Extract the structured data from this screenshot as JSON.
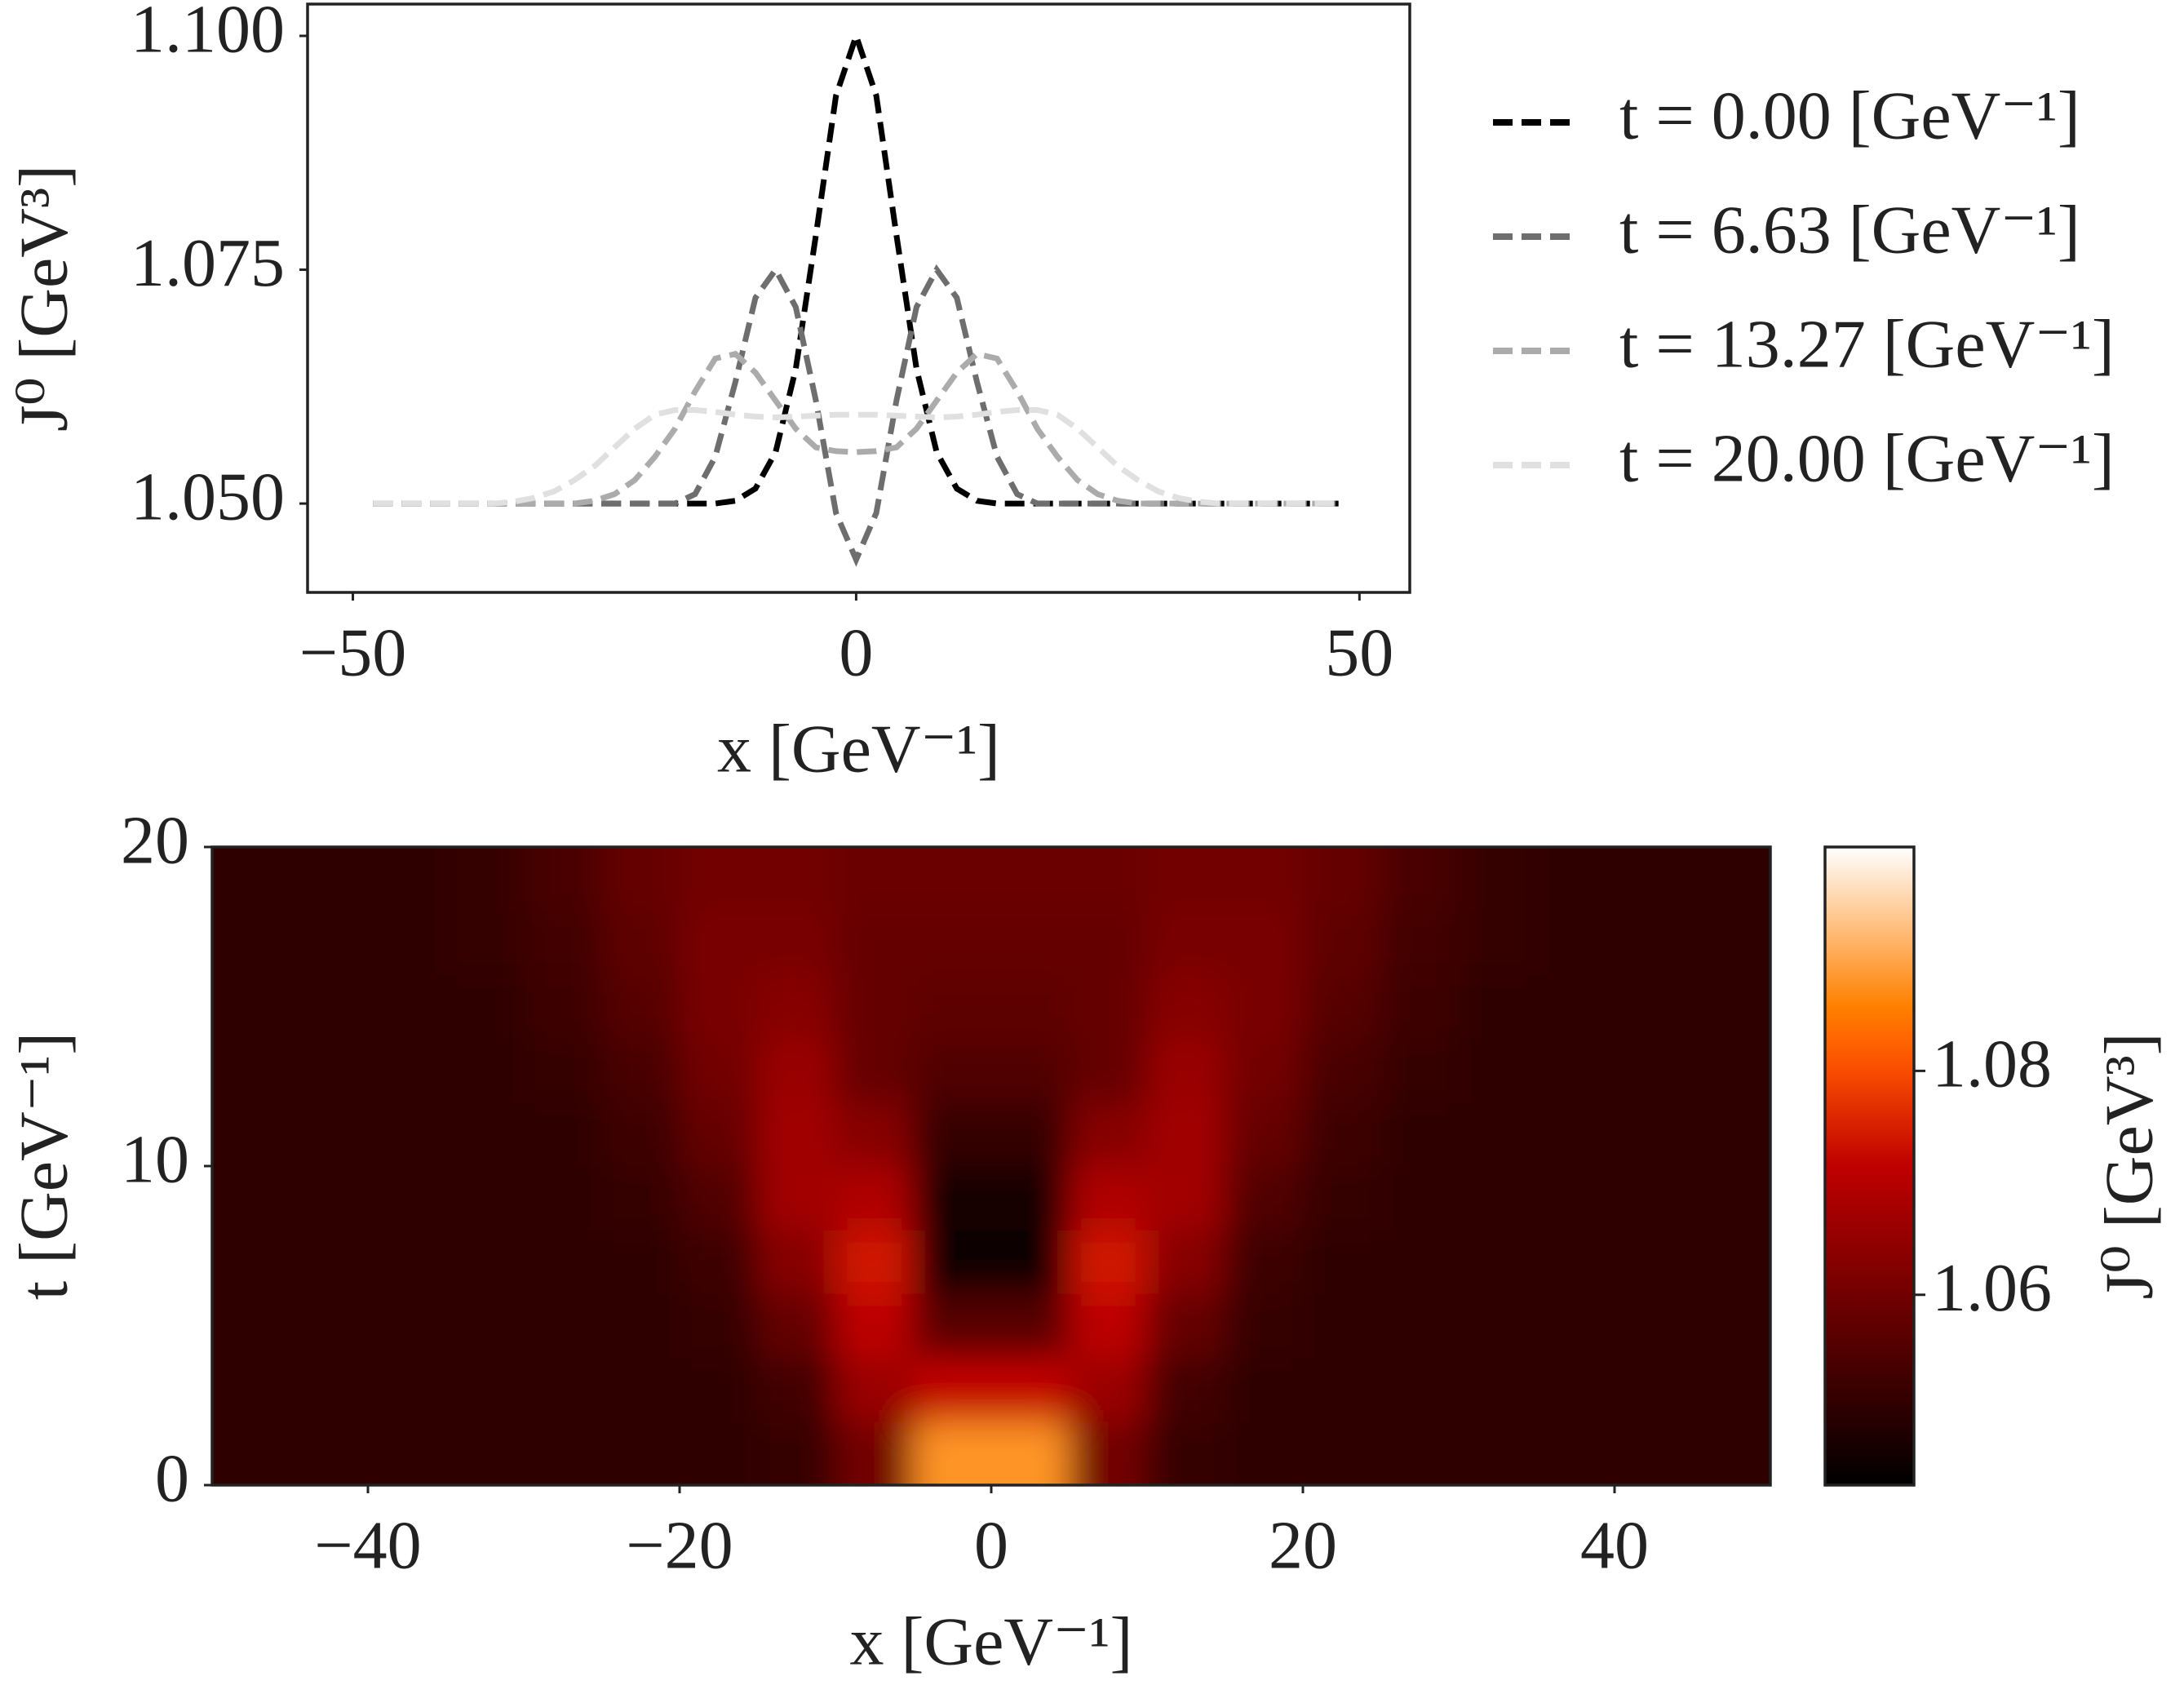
{
  "chart_data": [
    {
      "type": "line",
      "xlabel": "x [GeV⁻¹]",
      "ylabel": "J⁰ [GeV³]",
      "xlim": [
        -54.5,
        55
      ],
      "ylim": [
        1.0405,
        1.1034
      ],
      "xticks": [
        {
          "value": -50,
          "label": "−50"
        },
        0,
        50
      ],
      "yticks": [
        {
          "value": 1.05,
          "label": "1.050"
        },
        1.075,
        {
          "value": 1.1,
          "label": "1.100"
        }
      ],
      "grid": false,
      "legend": "outside-right",
      "line_style": "dashed",
      "x": [
        -48,
        -46,
        -44,
        -42,
        -40,
        -38,
        -36,
        -34,
        -32,
        -30,
        -28,
        -26,
        -24,
        -22,
        -20,
        -18,
        -16,
        -14,
        -12,
        -10,
        -8,
        -6,
        -4,
        -2,
        0,
        2,
        4,
        6,
        8,
        10,
        12,
        14,
        16,
        18,
        20,
        22,
        24,
        26,
        28,
        30,
        32,
        34,
        36,
        38,
        40,
        42,
        44,
        46,
        48
      ],
      "series": [
        {
          "name": "t = 0.00 [GeV⁻¹]",
          "color": "#000000",
          "values": [
            1.05,
            1.05,
            1.05,
            1.05,
            1.05,
            1.05,
            1.05,
            1.05,
            1.05,
            1.05,
            1.05,
            1.05,
            1.05,
            1.05,
            1.05,
            1.05,
            1.05,
            1.05,
            1.0503,
            1.0516,
            1.0555,
            1.0644,
            1.0787,
            1.0936,
            1.1,
            1.0936,
            1.0787,
            1.0644,
            1.0555,
            1.0516,
            1.0503,
            1.05,
            1.05,
            1.05,
            1.05,
            1.05,
            1.05,
            1.05,
            1.05,
            1.05,
            1.05,
            1.05,
            1.05,
            1.05,
            1.05,
            1.05,
            1.05,
            1.05,
            1.05
          ]
        },
        {
          "name": "t = 6.63 [GeV⁻¹]",
          "color": "#6e6e6e",
          "values": [
            1.05,
            1.05,
            1.05,
            1.05,
            1.05,
            1.05,
            1.05,
            1.05,
            1.05,
            1.05,
            1.05,
            1.05,
            1.05,
            1.05,
            1.05,
            1.05,
            1.051,
            1.055,
            1.063,
            1.072,
            1.075,
            1.071,
            1.061,
            1.049,
            1.044,
            1.049,
            1.061,
            1.071,
            1.075,
            1.072,
            1.063,
            1.055,
            1.051,
            1.05,
            1.05,
            1.05,
            1.05,
            1.05,
            1.05,
            1.05,
            1.05,
            1.05,
            1.05,
            1.05,
            1.05,
            1.05,
            1.05,
            1.05,
            1.05
          ]
        },
        {
          "name": "t = 13.27 [GeV⁻¹]",
          "color": "#ababab",
          "values": [
            1.05,
            1.05,
            1.05,
            1.05,
            1.05,
            1.05,
            1.05,
            1.05,
            1.05,
            1.05,
            1.05,
            1.0503,
            1.051,
            1.0525,
            1.055,
            1.058,
            1.062,
            1.0655,
            1.066,
            1.064,
            1.061,
            1.058,
            1.056,
            1.0556,
            1.0555,
            1.0556,
            1.056,
            1.058,
            1.061,
            1.064,
            1.066,
            1.0655,
            1.062,
            1.058,
            1.055,
            1.0525,
            1.051,
            1.0503,
            1.05,
            1.05,
            1.05,
            1.05,
            1.05,
            1.05,
            1.05,
            1.05,
            1.05,
            1.05,
            1.05
          ]
        },
        {
          "name": "t = 20.00 [GeV⁻¹]",
          "color": "#e0e0e0",
          "values": [
            1.05,
            1.05,
            1.05,
            1.05,
            1.05,
            1.05,
            1.05,
            1.0502,
            1.0506,
            1.0513,
            1.0525,
            1.054,
            1.056,
            1.058,
            1.0595,
            1.06,
            1.06,
            1.0598,
            1.0595,
            1.0593,
            1.0592,
            1.0593,
            1.0594,
            1.0595,
            1.0595,
            1.0595,
            1.0594,
            1.0593,
            1.0592,
            1.0593,
            1.0595,
            1.0598,
            1.06,
            1.06,
            1.0595,
            1.058,
            1.056,
            1.054,
            1.0525,
            1.0513,
            1.0506,
            1.0502,
            1.05,
            1.05,
            1.05,
            1.05,
            1.05,
            1.05,
            1.05
          ]
        }
      ]
    },
    {
      "type": "heatmap",
      "xlabel": "x [GeV⁻¹]",
      "ylabel": "t [GeV⁻¹]",
      "xlim": [
        -50,
        50
      ],
      "ylim": [
        0,
        20
      ],
      "xticks": [
        {
          "value": -40,
          "label": "−40"
        },
        {
          "value": -20,
          "label": "−20"
        },
        0,
        20,
        40
      ],
      "yticks": [
        0,
        10,
        20
      ],
      "colormap": "gist_heat",
      "clim": [
        1.043,
        1.1
      ],
      "cticks": [
        1.06,
        1.08
      ],
      "clabel": "J⁰ [GeV³]",
      "x": [
        -47.5,
        -42.5,
        -37.5,
        -32.5,
        -27.5,
        -22.5,
        -17.5,
        -12.5,
        -7.5,
        -2.5,
        2.5,
        7.5,
        12.5,
        17.5,
        22.5,
        27.5,
        32.5,
        37.5,
        42.5,
        47.5
      ],
      "y": [
        1,
        3,
        5,
        7,
        9,
        11,
        13,
        15,
        17,
        19
      ],
      "z": [
        [
          1.05,
          1.05,
          1.05,
          1.05,
          1.05,
          1.05,
          1.05,
          1.051,
          1.06,
          1.088,
          1.088,
          1.06,
          1.051,
          1.05,
          1.05,
          1.05,
          1.05,
          1.05,
          1.05,
          1.05
        ],
        [
          1.05,
          1.05,
          1.05,
          1.05,
          1.05,
          1.05,
          1.05,
          1.053,
          1.066,
          1.072,
          1.072,
          1.066,
          1.053,
          1.05,
          1.05,
          1.05,
          1.05,
          1.05,
          1.05,
          1.05
        ],
        [
          1.05,
          1.05,
          1.05,
          1.05,
          1.05,
          1.05,
          1.051,
          1.058,
          1.071,
          1.056,
          1.056,
          1.071,
          1.058,
          1.051,
          1.05,
          1.05,
          1.05,
          1.05,
          1.05,
          1.05
        ],
        [
          1.05,
          1.05,
          1.05,
          1.05,
          1.05,
          1.05,
          1.052,
          1.063,
          1.074,
          1.045,
          1.045,
          1.074,
          1.063,
          1.052,
          1.05,
          1.05,
          1.05,
          1.05,
          1.05,
          1.05
        ],
        [
          1.05,
          1.05,
          1.05,
          1.05,
          1.05,
          1.051,
          1.055,
          1.067,
          1.069,
          1.046,
          1.046,
          1.069,
          1.067,
          1.055,
          1.051,
          1.05,
          1.05,
          1.05,
          1.05,
          1.05
        ],
        [
          1.05,
          1.05,
          1.05,
          1.05,
          1.05,
          1.052,
          1.058,
          1.067,
          1.063,
          1.051,
          1.051,
          1.063,
          1.067,
          1.058,
          1.052,
          1.05,
          1.05,
          1.05,
          1.05,
          1.05
        ],
        [
          1.05,
          1.05,
          1.05,
          1.05,
          1.051,
          1.054,
          1.06,
          1.066,
          1.058,
          1.055,
          1.055,
          1.058,
          1.066,
          1.06,
          1.054,
          1.051,
          1.05,
          1.05,
          1.05,
          1.05
        ],
        [
          1.05,
          1.05,
          1.05,
          1.05,
          1.052,
          1.056,
          1.061,
          1.063,
          1.058,
          1.057,
          1.057,
          1.058,
          1.063,
          1.061,
          1.056,
          1.052,
          1.05,
          1.05,
          1.05,
          1.05
        ],
        [
          1.05,
          1.05,
          1.05,
          1.051,
          1.053,
          1.057,
          1.061,
          1.061,
          1.058,
          1.058,
          1.058,
          1.058,
          1.061,
          1.061,
          1.057,
          1.053,
          1.051,
          1.05,
          1.05,
          1.05
        ],
        [
          1.05,
          1.05,
          1.05,
          1.051,
          1.054,
          1.058,
          1.06,
          1.06,
          1.059,
          1.059,
          1.059,
          1.059,
          1.06,
          1.06,
          1.058,
          1.054,
          1.051,
          1.05,
          1.05,
          1.05
        ]
      ]
    }
  ]
}
